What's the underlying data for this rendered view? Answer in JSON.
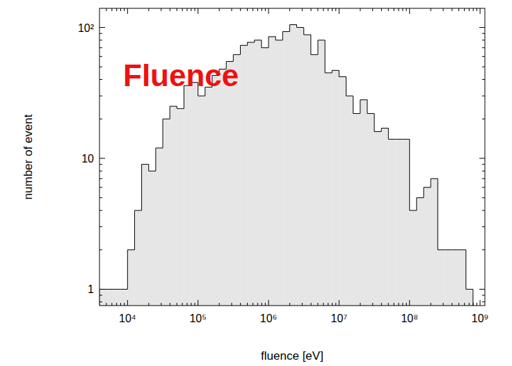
{
  "chart_data": {
    "type": "histogram",
    "annotation": "Fluence",
    "x_label": "fluence [eV]",
    "y_label": "number of event",
    "bins": [
      3981,
      5012,
      6310,
      7943,
      10000,
      12589,
      15849,
      19953,
      25119,
      31623,
      39811,
      50119,
      63096,
      79433,
      100000,
      125893,
      158489,
      199526,
      251189,
      316228,
      398107,
      501187,
      630957,
      794328,
      1000000,
      1258925,
      1584893,
      1995262,
      2511886,
      3162278,
      3981072,
      5011872,
      6309573,
      7943282,
      10000000,
      12589254,
      15848932,
      19952623,
      25118864,
      31622777,
      39810717,
      50118723,
      63095734,
      79432823,
      100000000,
      125892541,
      158489319,
      199526231,
      251188643,
      316227766,
      398107171,
      501187234,
      630957344,
      794328235
    ],
    "values": [
      1,
      1,
      1,
      1,
      2,
      4,
      9,
      8,
      12,
      20,
      25,
      24,
      36,
      38,
      30,
      35,
      43,
      48,
      55,
      62,
      73,
      77,
      80,
      70,
      85,
      80,
      93,
      105,
      100,
      88,
      62,
      80,
      45,
      47,
      42,
      30,
      22,
      28,
      22,
      16,
      17,
      14,
      14,
      14,
      4,
      5,
      6,
      7,
      2,
      2,
      2,
      2,
      1
    ],
    "color": "#e6e6e6",
    "xlim": [
      4000,
      1170000000
    ],
    "ylim": [
      0.75,
      140
    ],
    "xticks": [
      {
        "value": 10000,
        "label": "10⁴"
      },
      {
        "value": 100000,
        "label": "10⁵"
      },
      {
        "value": 1000000,
        "label": "10⁶"
      },
      {
        "value": 10000000,
        "label": "10⁷"
      },
      {
        "value": 100000000,
        "label": "10⁸"
      },
      {
        "value": 1000000000,
        "label": "10⁹"
      }
    ],
    "yticks": [
      1,
      10,
      {
        "value": 100,
        "label": "10²"
      }
    ],
    "log": true,
    "grid": false
  }
}
